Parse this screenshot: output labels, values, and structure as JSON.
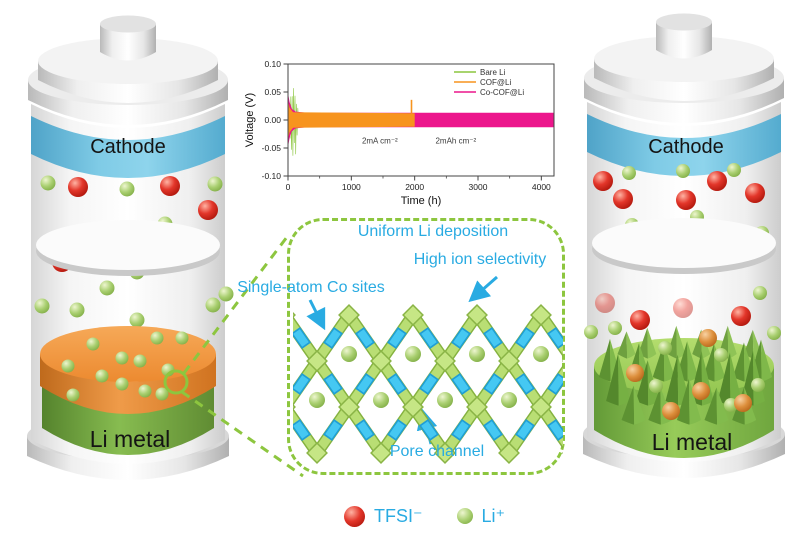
{
  "figure": {
    "left_battery": {
      "cathode_label": "Cathode",
      "anode_label": "Li metal"
    },
    "right_battery": {
      "cathode_label": "Cathode",
      "anode_label": "Li metal"
    },
    "callout": {
      "uniform_label": "Uniform Li deposition",
      "selectivity_label": "High ion selectivity",
      "co_sites_label": "Single-atom Co sites",
      "pore_label": "Pore channel",
      "accent_color": "#29abe2",
      "box_color": "#8dc63f"
    },
    "ion_legend": {
      "tfsi": {
        "label": "TFSI⁻",
        "color": "#d42a1f"
      },
      "li": {
        "label": "Li⁺",
        "color": "#8fbf4d"
      }
    }
  },
  "chart_data": {
    "type": "line",
    "title": "",
    "xlabel": "Time (h)",
    "ylabel": "Voltage (V)",
    "xlim": [
      0,
      4200
    ],
    "ylim": [
      -0.1,
      0.1
    ],
    "xticks": [
      0,
      1000,
      2000,
      3000,
      4000
    ],
    "x_minor_step": 500,
    "yticks": [
      "0.10",
      "0.05",
      "0.00",
      "-0.05",
      "-0.10"
    ],
    "grid": false,
    "legend_position": "top-right",
    "legend": [
      {
        "name": "Bare Li",
        "color": "#8cc63f"
      },
      {
        "name": "COF@Li",
        "color": "#f7941e"
      },
      {
        "name": "Co-COF@Li",
        "color": "#ec168c"
      }
    ],
    "series": [
      {
        "name": "Bare Li",
        "color": "#8cc63f",
        "style": "noise",
        "envelope": [
          [
            0,
            0.01
          ],
          [
            15,
            0.03
          ],
          [
            40,
            0.055
          ],
          [
            70,
            0.075
          ],
          [
            100,
            0.08
          ],
          [
            125,
            0.065
          ],
          [
            150,
            0.04
          ],
          [
            165,
            0.008
          ]
        ]
      },
      {
        "name": "Co-COF@Li",
        "color": "#ec168c",
        "style": "band",
        "envelope": [
          [
            0,
            0.048
          ],
          [
            25,
            0.032
          ],
          [
            60,
            0.02
          ],
          [
            120,
            0.015
          ],
          [
            300,
            0.013
          ],
          [
            4200,
            0.013
          ]
        ]
      },
      {
        "name": "COF@Li",
        "color": "#f7941e",
        "style": "band",
        "envelope": [
          [
            0,
            0.034
          ],
          [
            25,
            0.022
          ],
          [
            80,
            0.014
          ],
          [
            2000,
            0.012
          ]
        ],
        "spike": {
          "x": 1950,
          "y": 0.036
        }
      }
    ],
    "annotations": [
      {
        "text": "2mA cm⁻²",
        "x": 1450,
        "y": -0.042
      },
      {
        "text": "2mAh cm⁻²",
        "x": 2650,
        "y": -0.042
      }
    ]
  }
}
